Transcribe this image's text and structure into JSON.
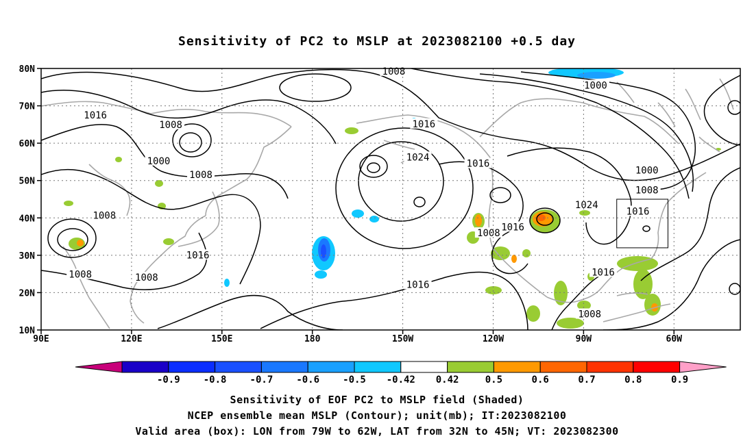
{
  "title": "Sensitivity of PC2 to MSLP at 2023082100 +0.5 day",
  "map": {
    "lat_labels": [
      "80N",
      "70N",
      "60N",
      "50N",
      "40N",
      "30N",
      "20N",
      "10N"
    ],
    "lon_labels": [
      "90E",
      "120E",
      "150E",
      "180",
      "150W",
      "120W",
      "90W",
      "60W"
    ],
    "contour_labels": [
      {
        "text": "1008",
        "lon": -153,
        "lat": 79.3
      },
      {
        "text": "1000",
        "lon": -86,
        "lat": 75.5
      },
      {
        "text": "1016",
        "lon": 108,
        "lat": 67.5
      },
      {
        "text": "1008",
        "lon": 133,
        "lat": 65
      },
      {
        "text": "1016",
        "lon": -143,
        "lat": 65.2
      },
      {
        "text": "1024",
        "lon": -145,
        "lat": 56.3
      },
      {
        "text": "1016",
        "lon": -125,
        "lat": 54.6
      },
      {
        "text": "1000",
        "lon": 129,
        "lat": 55.3
      },
      {
        "text": "1008",
        "lon": 143,
        "lat": 51.6
      },
      {
        "text": "1000",
        "lon": -69,
        "lat": 52.8
      },
      {
        "text": "1008",
        "lon": -69,
        "lat": 47.5
      },
      {
        "text": "1024",
        "lon": -89,
        "lat": 43.5
      },
      {
        "text": "1016",
        "lon": -72,
        "lat": 41.8
      },
      {
        "text": "1008",
        "lon": 111,
        "lat": 40.7
      },
      {
        "text": "1016",
        "lon": -113.5,
        "lat": 37.6
      },
      {
        "text": "1008",
        "lon": -121.5,
        "lat": 36
      },
      {
        "text": "1016",
        "lon": 142,
        "lat": 30.1
      },
      {
        "text": "1008",
        "lon": 103,
        "lat": 24.9
      },
      {
        "text": "1008",
        "lon": 125,
        "lat": 24.1
      },
      {
        "text": "1016",
        "lon": -83.5,
        "lat": 25.5
      },
      {
        "text": "1016",
        "lon": -145,
        "lat": 22.2
      },
      {
        "text": "1008",
        "lon": -88,
        "lat": 14.3
      }
    ],
    "valid_box": {
      "lon_west": -79,
      "lon_east": -62,
      "lat_south": 32,
      "lat_north": 45
    }
  },
  "colorbar": {
    "labels": [
      "-0.9",
      "-0.8",
      "-0.7",
      "-0.6",
      "-0.5",
      "-0.42",
      "0.42",
      "0.5",
      "0.6",
      "0.7",
      "0.8",
      "0.9"
    ],
    "colors": [
      "#c8007a",
      "#1a00c8",
      "#0a2dff",
      "#1a50ff",
      "#1a78ff",
      "#1aa0ff",
      "#10c8ff",
      "#ffffff",
      "#99cc33",
      "#ff9900",
      "#ff6600",
      "#ff3300",
      "#ff0000",
      "#ffa0c8"
    ]
  },
  "captions": [
    "Sensitivity of EOF PC2 to MSLP field (Shaded)",
    "NCEP ensemble mean MSLP (Contour); unit(mb); IT:2023082100",
    "Valid area (box): LON from 79W to 62W, LAT from 32N to 45N; VT: 2023082300"
  ]
}
